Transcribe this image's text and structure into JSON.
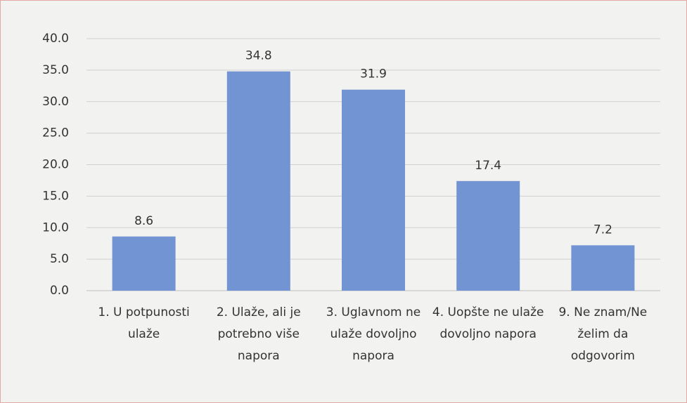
{
  "chart_data": {
    "type": "bar",
    "categories": [
      "1. U potpunosti ulaže",
      "2. Ulaže, ali je potrebno više napora",
      "3. Uglavnom ne ulaže dovoljno napora",
      "4. Uopšte ne ulaže dovoljno napora",
      "9. Ne znam/Ne želim da odgovorim"
    ],
    "values": [
      8.6,
      34.8,
      31.9,
      17.4,
      7.2
    ],
    "color": "#7394d3",
    "ylim": [
      0,
      40
    ],
    "yticks": [
      {
        "value": 0,
        "label": "0.0"
      },
      {
        "value": 5,
        "label": "5.0"
      },
      {
        "value": 10,
        "label": "10.0"
      },
      {
        "value": 15,
        "label": "15.0"
      },
      {
        "value": 20,
        "label": "20.0"
      },
      {
        "value": 25,
        "label": "25.0"
      },
      {
        "value": 30,
        "label": "30.0"
      },
      {
        "value": 35,
        "label": "35.0"
      },
      {
        "value": 40,
        "label": "40.0"
      }
    ],
    "grid": true
  }
}
